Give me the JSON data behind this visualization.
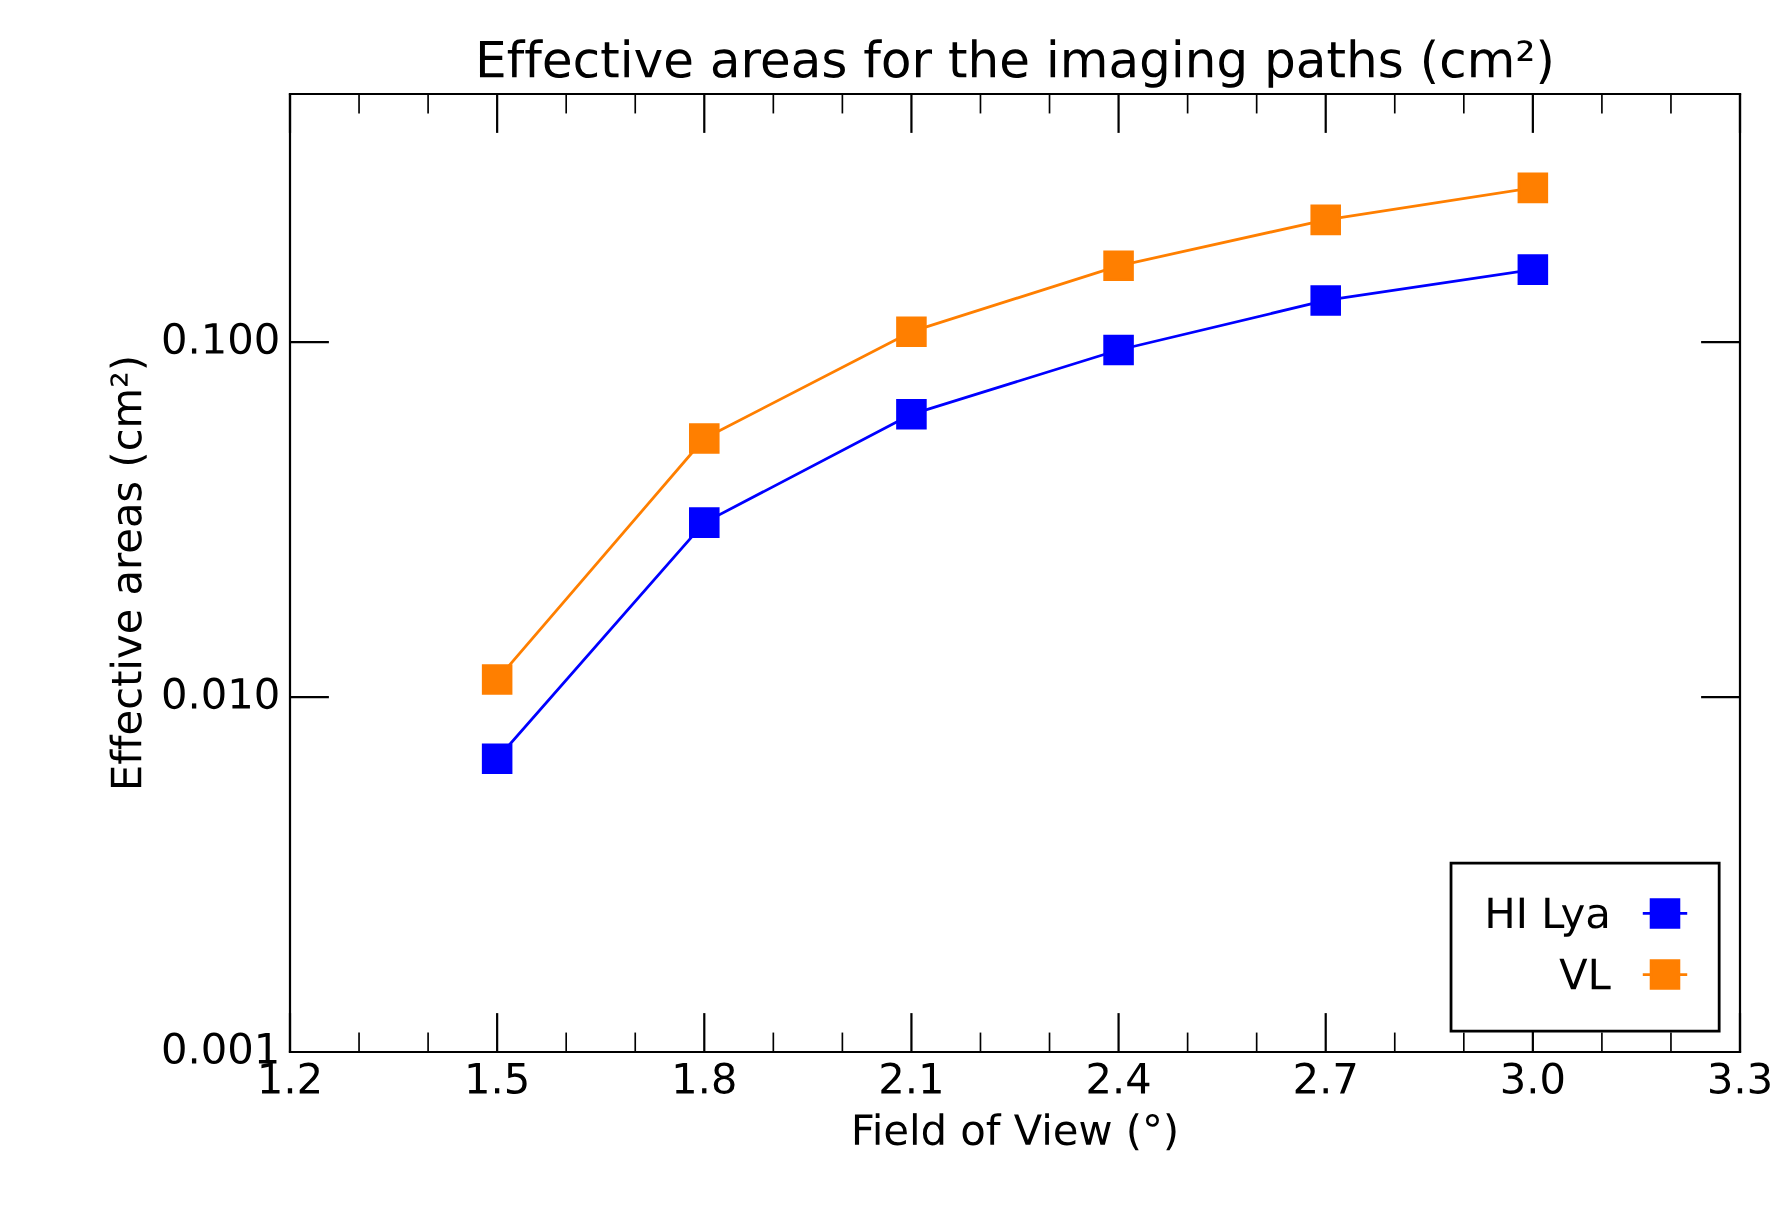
{
  "chart_data": {
    "type": "line",
    "title": "Effective areas for the imaging paths (cm²)",
    "xlabel": "Field of View (°)",
    "ylabel": "Effective areas (cm²)",
    "x": [
      1.5,
      1.8,
      2.1,
      2.4,
      2.7,
      3.0
    ],
    "series": [
      {
        "name": "HI Lya",
        "color": "#0000ff",
        "values": [
          0.0067,
          0.031,
          0.0626,
          0.095,
          0.131,
          0.16
        ]
      },
      {
        "name": "VL",
        "color": "#ff7f00",
        "values": [
          0.0112,
          0.0535,
          0.107,
          0.164,
          0.221,
          0.272
        ]
      }
    ],
    "log": "y",
    "xlim": [
      1.2,
      3.3
    ],
    "xticks": [
      1.2,
      1.5,
      1.8,
      2.1,
      2.4,
      2.7,
      {
        "value": 3.0,
        "label": "3.0"
      },
      3.3
    ],
    "ylim": [
      0.001,
      0.5
    ],
    "yticks": [
      0.001,
      {
        "value": 0.01,
        "label": "0.010"
      },
      {
        "value": 0.1,
        "label": "0.100"
      }
    ],
    "marker": "square",
    "line_style": "solid",
    "legend": "bottom right",
    "grid": false
  }
}
